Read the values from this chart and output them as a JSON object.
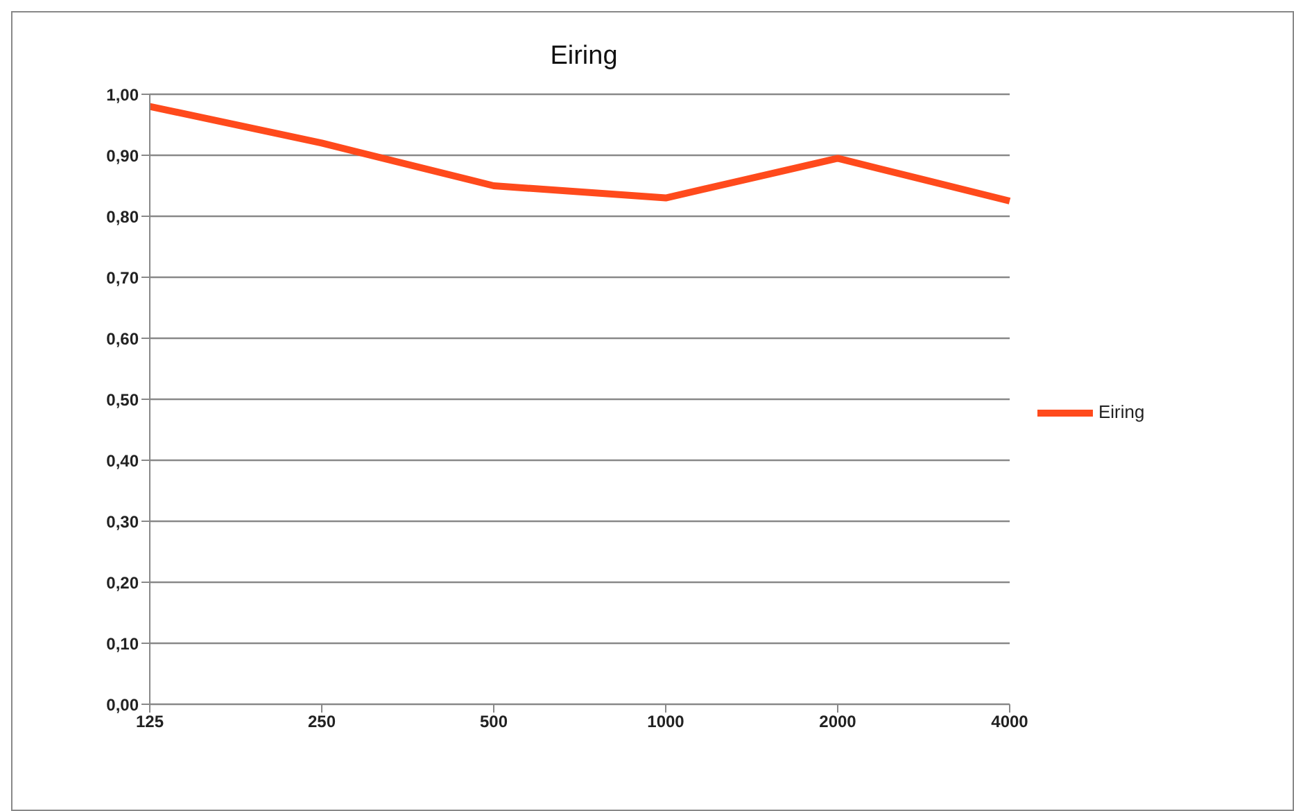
{
  "chart_data": {
    "type": "line",
    "title": "Eiring",
    "categories": [
      "125",
      "250",
      "500",
      "1000",
      "2000",
      "4000"
    ],
    "series": [
      {
        "name": "Eiring",
        "color": "#ff4a1c",
        "values": [
          0.98,
          0.92,
          0.85,
          0.83,
          0.895,
          0.825
        ]
      }
    ],
    "ylim": [
      0,
      1
    ],
    "yticks": [
      {
        "value": 0,
        "label": "0,00"
      },
      {
        "value": 0.1,
        "label": "0,10"
      },
      {
        "value": 0.2,
        "label": "0,20"
      },
      {
        "value": 0.3,
        "label": "0,30"
      },
      {
        "value": 0.4,
        "label": "0,40"
      },
      {
        "value": 0.5,
        "label": "0,50"
      },
      {
        "value": 0.6,
        "label": "0,60"
      },
      {
        "value": 0.7,
        "label": "0,70"
      },
      {
        "value": 0.8,
        "label": "0,80"
      },
      {
        "value": 0.9,
        "label": "0,90"
      },
      {
        "value": 1,
        "label": "1,00"
      }
    ],
    "grid": "y",
    "legend": "right",
    "marker": "none",
    "line_style": "solid"
  }
}
